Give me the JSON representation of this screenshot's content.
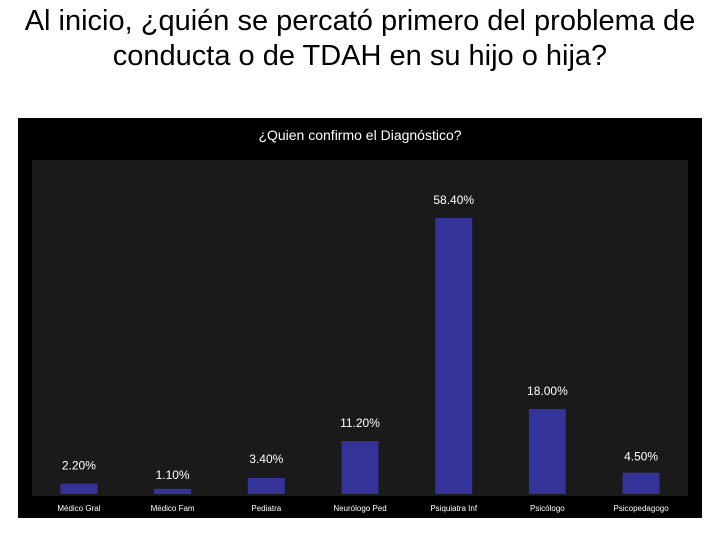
{
  "slide": {
    "title": "Al inicio, ¿quién se percató primero del problema de conducta o de TDAH en su hijo o hija?"
  },
  "colors": {
    "panel_bg": "#000000",
    "plot_bg": "#1a1a1a",
    "bar": "#333399",
    "text": "#ffffff"
  },
  "chart_data": {
    "type": "bar",
    "title": "¿Quien confirmo el Diagnóstico?",
    "xlabel": "",
    "ylabel": "",
    "categories": [
      "Médico Gral",
      "Médico Fam",
      "Pediatra",
      "Neurólogo Ped",
      "Psiquiatra Inf",
      "Psicólogo",
      "Psicopedagogo"
    ],
    "values": [
      2.2,
      1.1,
      3.4,
      11.2,
      58.4,
      18.0,
      4.5
    ],
    "data_labels": [
      "2.20%",
      "1.10%",
      "3.40%",
      "11.20%",
      "58.40%",
      "18.00%",
      "4.50%"
    ],
    "ylim": [
      0,
      60
    ],
    "grid": false,
    "legend": "none"
  }
}
